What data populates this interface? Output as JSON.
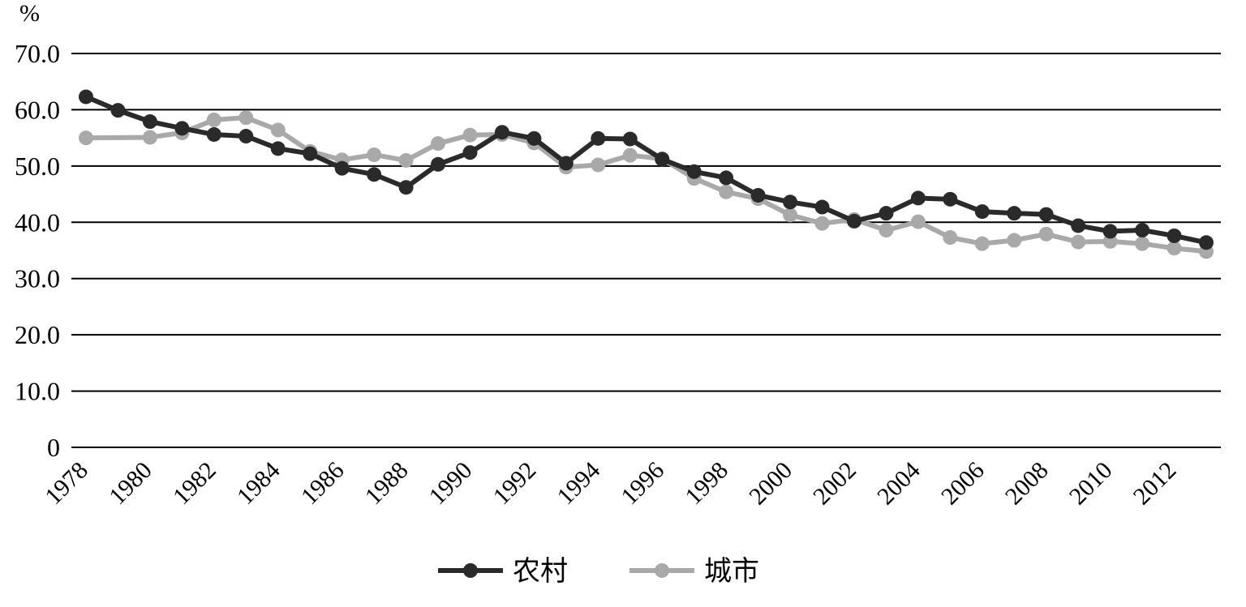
{
  "chart_data": {
    "type": "line",
    "ylabel": "%",
    "xlabel": "",
    "title": "",
    "ylim": [
      0,
      70
    ],
    "yticks": [
      "0",
      "10.0",
      "20.0",
      "30.0",
      "40.0",
      "50.0",
      "60.0",
      "70.0"
    ],
    "x": [
      1978,
      1979,
      1980,
      1981,
      1982,
      1983,
      1984,
      1985,
      1986,
      1987,
      1988,
      1989,
      1990,
      1991,
      1992,
      1993,
      1994,
      1995,
      1996,
      1997,
      1998,
      1999,
      2000,
      2001,
      2002,
      2003,
      2004,
      2005,
      2006,
      2007,
      2008,
      2009,
      2010,
      2011,
      2012,
      2013
    ],
    "xtick_labels": [
      "1978",
      "1980",
      "1982",
      "1984",
      "1986",
      "1988",
      "1990",
      "1992",
      "1994",
      "1996",
      "1998",
      "2000",
      "2002",
      "2004",
      "2006",
      "2008",
      "2010",
      "2012"
    ],
    "grid": true,
    "legend_position": "bottom-center",
    "series": [
      {
        "name": "农村",
        "color": "#2a2a2a",
        "values": [
          62.3,
          59.9,
          57.9,
          56.7,
          55.6,
          55.3,
          53.1,
          52.2,
          49.6,
          48.5,
          46.2,
          50.3,
          52.4,
          56.0,
          54.9,
          50.5,
          54.9,
          54.8,
          51.2,
          49.0,
          47.9,
          44.8,
          43.6,
          42.7,
          40.2,
          41.6,
          44.3,
          44.1,
          41.9,
          41.6,
          41.4,
          39.4,
          38.4,
          38.6,
          37.6,
          36.4
        ],
        "marker": "circle"
      },
      {
        "name": "城市",
        "color": "#a9a9a9",
        "values": [
          55.0,
          null,
          55.1,
          55.9,
          58.2,
          58.6,
          56.4,
          52.6,
          51.1,
          52.0,
          51.0,
          54.0,
          55.5,
          55.6,
          54.1,
          49.8,
          50.2,
          51.9,
          51.3,
          47.8,
          45.4,
          44.2,
          41.3,
          39.8,
          40.5,
          38.6,
          40.1,
          37.3,
          36.2,
          36.8,
          37.9,
          36.5,
          36.6,
          36.2,
          35.4,
          34.8
        ],
        "marker": "circle"
      }
    ]
  }
}
